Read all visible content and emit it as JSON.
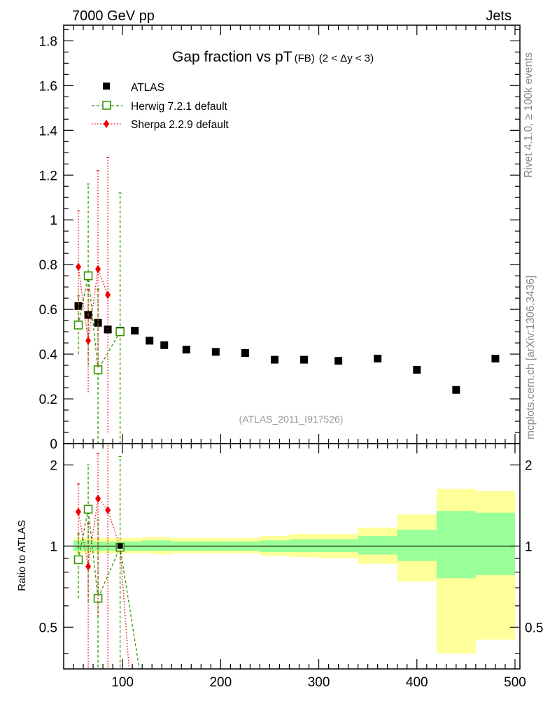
{
  "header": {
    "left": "7000 GeV pp",
    "right": "Jets",
    "right_vertical_top": "Rivet 4.1.0, ≥ 100k events",
    "right_vertical_bottom": "mcplots.cern.ch [arXiv:1306.3436]"
  },
  "chart_data": {
    "type": "line",
    "title": "Gap fraction vs pT",
    "title_sub": "(FB)",
    "title_range": "(2 < Δy < 3)",
    "watermark": "(ATLAS_2011_I917526)",
    "xlim": [
      40,
      505
    ],
    "xticks": [
      100,
      200,
      300,
      400,
      500
    ],
    "xtick_labels": [
      "100",
      "200",
      "300",
      "400",
      "500"
    ],
    "main": {
      "ylim": [
        0,
        1.87
      ],
      "yticks": [
        0,
        0.2,
        0.4,
        0.6,
        0.8,
        1,
        1.2,
        1.4,
        1.6,
        1.8
      ],
      "ytick_labels": [
        "0",
        "0.2",
        "0.4",
        "0.6",
        "0.8",
        "1",
        "1.2",
        "1.4",
        "1.6",
        "1.8"
      ]
    },
    "ratio": {
      "ylabel": "Ratio to ATLAS",
      "ylim": [
        0.35,
        2.4
      ],
      "yticks": [
        0.5,
        1,
        2
      ],
      "ytick_labels": [
        "0.5",
        "1",
        "2"
      ],
      "bands": [
        {
          "x0": 50,
          "x1": 60,
          "in": [
            0.96,
            1.05
          ],
          "out": [
            0.94,
            1.07
          ]
        },
        {
          "x0": 60,
          "x1": 70,
          "in": [
            0.96,
            1.05
          ],
          "out": [
            0.94,
            1.07
          ]
        },
        {
          "x0": 70,
          "x1": 80,
          "in": [
            0.96,
            1.04
          ],
          "out": [
            0.94,
            1.07
          ]
        },
        {
          "x0": 80,
          "x1": 90,
          "in": [
            0.96,
            1.04
          ],
          "out": [
            0.94,
            1.07
          ]
        },
        {
          "x0": 90,
          "x1": 105,
          "in": [
            0.96,
            1.04
          ],
          "out": [
            0.94,
            1.07
          ]
        },
        {
          "x0": 105,
          "x1": 120,
          "in": [
            0.96,
            1.04
          ],
          "out": [
            0.94,
            1.07
          ]
        },
        {
          "x0": 120,
          "x1": 135,
          "in": [
            0.96,
            1.05
          ],
          "out": [
            0.94,
            1.08
          ]
        },
        {
          "x0": 135,
          "x1": 150,
          "in": [
            0.96,
            1.05
          ],
          "out": [
            0.93,
            1.08
          ]
        },
        {
          "x0": 150,
          "x1": 180,
          "in": [
            0.96,
            1.04
          ],
          "out": [
            0.94,
            1.07
          ]
        },
        {
          "x0": 180,
          "x1": 210,
          "in": [
            0.96,
            1.04
          ],
          "out": [
            0.94,
            1.07
          ]
        },
        {
          "x0": 210,
          "x1": 240,
          "in": [
            0.96,
            1.04
          ],
          "out": [
            0.94,
            1.07
          ]
        },
        {
          "x0": 240,
          "x1": 270,
          "in": [
            0.95,
            1.05
          ],
          "out": [
            0.92,
            1.09
          ]
        },
        {
          "x0": 270,
          "x1": 300,
          "in": [
            0.95,
            1.06
          ],
          "out": [
            0.91,
            1.11
          ]
        },
        {
          "x0": 300,
          "x1": 340,
          "in": [
            0.95,
            1.06
          ],
          "out": [
            0.9,
            1.11
          ]
        },
        {
          "x0": 340,
          "x1": 380,
          "in": [
            0.93,
            1.09
          ],
          "out": [
            0.86,
            1.17
          ]
        },
        {
          "x0": 380,
          "x1": 420,
          "in": [
            0.88,
            1.15
          ],
          "out": [
            0.74,
            1.31
          ]
        },
        {
          "x0": 420,
          "x1": 460,
          "in": [
            0.76,
            1.35
          ],
          "out": [
            0.4,
            1.63
          ]
        },
        {
          "x0": 460,
          "x1": 500,
          "in": [
            0.78,
            1.33
          ],
          "out": [
            0.45,
            1.6
          ]
        }
      ]
    },
    "series": [
      {
        "name": "ATLAS",
        "color": "#000000",
        "marker": "square",
        "x": [
          55,
          65,
          75,
          85,
          97.5,
          112.5,
          127.5,
          142.5,
          165,
          195,
          225,
          255,
          285,
          320,
          360,
          400,
          440,
          480
        ],
        "y": [
          0.615,
          0.575,
          0.54,
          0.51,
          0.505,
          0.505,
          0.46,
          0.44,
          0.42,
          0.41,
          0.405,
          0.375,
          0.375,
          0.37,
          0.38,
          0.33,
          0.24,
          0.38
        ]
      },
      {
        "name": "Herwig 7.2.1 default",
        "color": "#339900",
        "marker": "open-square",
        "line": "dashed",
        "x": [
          55,
          65,
          75,
          97.5
        ],
        "y": [
          0.53,
          0.75,
          0.33,
          0.5
        ],
        "ylo": [
          0.4,
          0.35,
          0.0,
          0.0
        ],
        "yhi": [
          0.66,
          1.16,
          0.69,
          1.12
        ],
        "ratio": [
          0.89,
          1.37,
          0.64,
          0.99
        ],
        "ratio_lo": [
          0.64,
          0.62,
          0.3,
          0.3
        ],
        "ratio_hi": [
          1.11,
          2.0,
          1.25,
          2.15
        ],
        "ratio_tail": [
          [
            97.5,
            0.99
          ],
          [
            120,
            0.3
          ]
        ]
      },
      {
        "name": "Sherpa 2.2.9 default",
        "color": "#ee0000",
        "marker": "diamond",
        "line": "dotted",
        "x": [
          55,
          65,
          75,
          85
        ],
        "y": [
          0.79,
          0.46,
          0.78,
          0.665
        ],
        "ylo": [
          0.55,
          0.23,
          0.34,
          0.05
        ],
        "yhi": [
          1.04,
          0.69,
          1.22,
          1.28
        ],
        "ratio": [
          1.34,
          0.84,
          1.5,
          1.36
        ],
        "ratio_lo": [
          0.99,
          0.3,
          0.55,
          0.3
        ],
        "ratio_hi": [
          1.7,
          1.21,
          2.2,
          2.5
        ],
        "ratio_tail": [
          [
            85,
            1.36
          ],
          [
            97.5,
            0.99
          ],
          [
            108,
            0.3
          ]
        ]
      }
    ]
  }
}
